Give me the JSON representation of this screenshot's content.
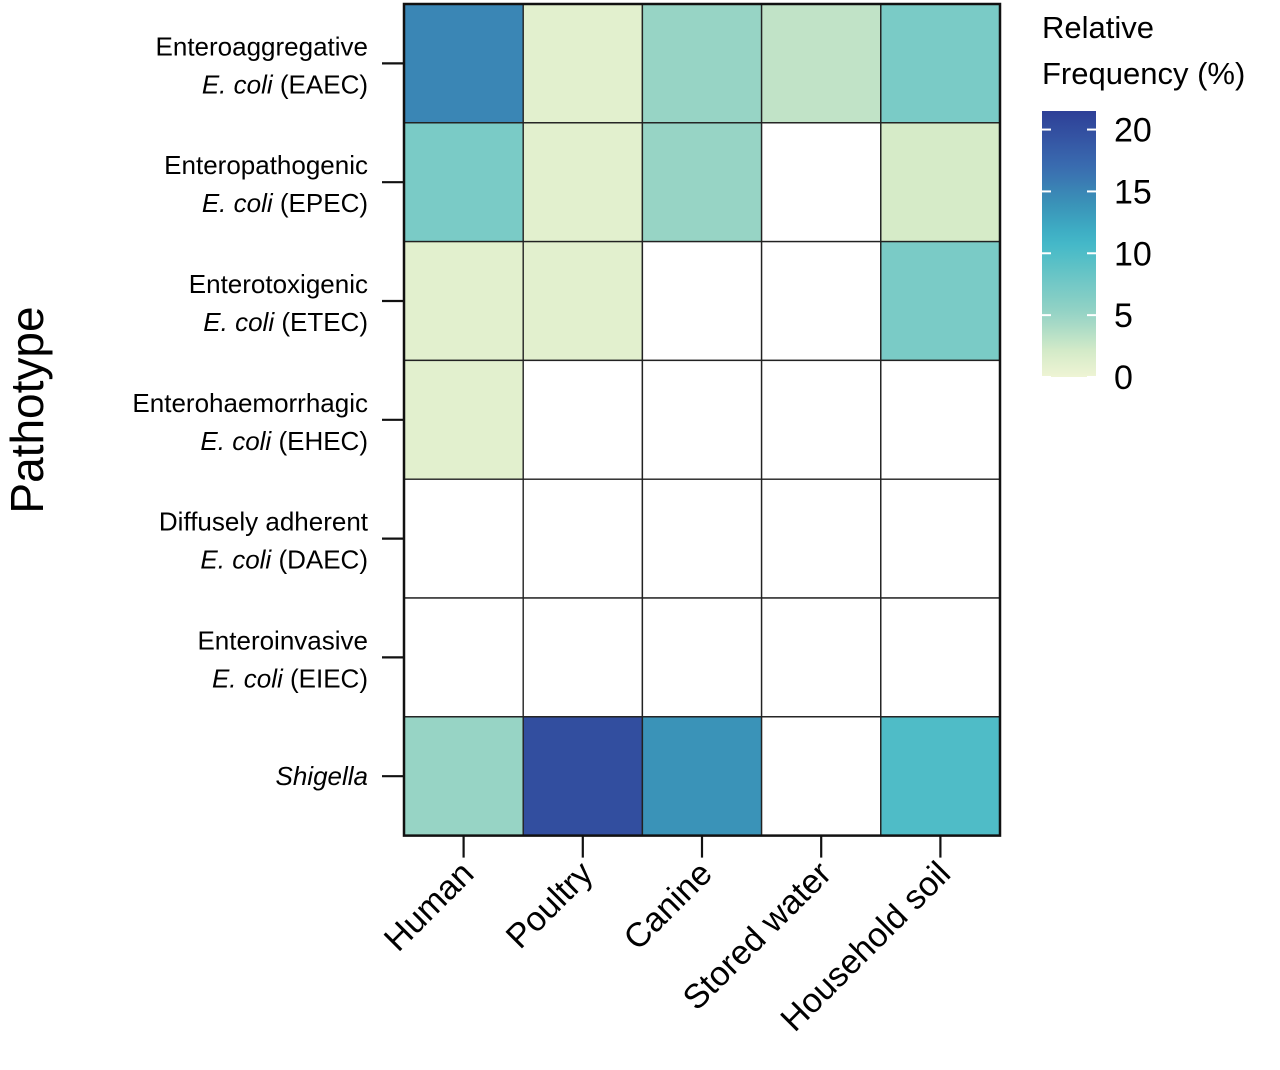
{
  "chart_data": {
    "type": "heatmap",
    "ylabel": "Pathotype",
    "xlabel": "",
    "x_categories": [
      "Human",
      "Poultry",
      "Canine",
      "Stored water",
      "Household soil"
    ],
    "y_categories": [
      {
        "name": "Enteroaggregative",
        "species": "E. coli",
        "abbr": "(EAEC)"
      },
      {
        "name": "Enteropathogenic",
        "species": "E. coli",
        "abbr": "(EPEC)"
      },
      {
        "name": "Enterotoxigenic",
        "species": "E. coli",
        "abbr": "(ETEC)"
      },
      {
        "name": "Enterohaemorrhagic",
        "species": "E. coli",
        "abbr": "(EHEC)"
      },
      {
        "name": "Diffusely adherent",
        "species": "E. coli",
        "abbr": "(DAEC)"
      },
      {
        "name": "Enteroinvasive",
        "species": "E. coli",
        "abbr": "(EIEC)"
      },
      {
        "name": "",
        "species": "Shigella",
        "abbr": ""
      }
    ],
    "values": [
      [
        15,
        1,
        5,
        3,
        7
      ],
      [
        7,
        1,
        5,
        null,
        2
      ],
      [
        1,
        1,
        null,
        null,
        7
      ],
      [
        1,
        null,
        null,
        null,
        null
      ],
      [
        null,
        null,
        null,
        null,
        null
      ],
      [
        null,
        null,
        null,
        null,
        null
      ],
      [
        5,
        20,
        14,
        null,
        10
      ]
    ],
    "legend": {
      "title_line1": "Relative",
      "title_line2": "Frequency (%)",
      "ticks": [
        0,
        5,
        10,
        15,
        20
      ],
      "range": [
        0,
        21.5
      ],
      "placement": "top-right"
    },
    "colorscale": [
      {
        "v": 0,
        "color": "#eef4d4"
      },
      {
        "v": 2,
        "color": "#d6ebc8"
      },
      {
        "v": 5,
        "color": "#97d4c5"
      },
      {
        "v": 8,
        "color": "#6cc6c6"
      },
      {
        "v": 11,
        "color": "#40b7c8"
      },
      {
        "v": 14,
        "color": "#3a93b8"
      },
      {
        "v": 17,
        "color": "#3a6cb0"
      },
      {
        "v": 21.5,
        "color": "#2e3f97"
      }
    ],
    "empty_color": "#ffffff"
  }
}
